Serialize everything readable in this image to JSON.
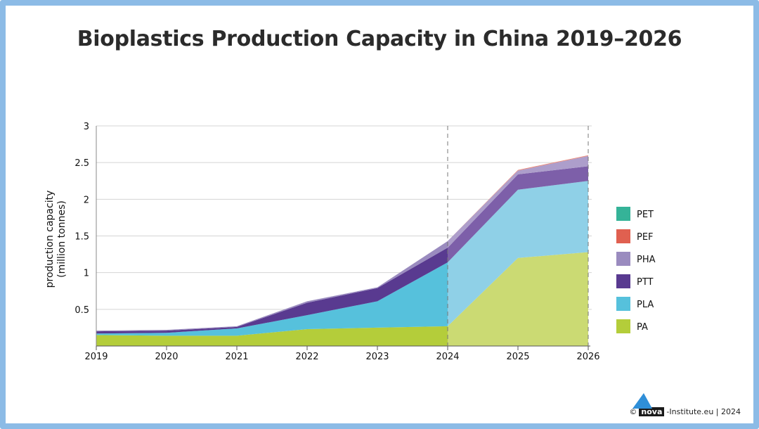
{
  "chart_data": {
    "type": "area",
    "stacked": true,
    "title": "Bioplastics Production Capacity in China 2019–2026",
    "xlabel": "",
    "ylabel": "production capacity (million tonnes)",
    "ylabel_lines": [
      "production capacity",
      "(million tonnes)"
    ],
    "x": [
      "2019",
      "2020",
      "2021",
      "2022",
      "2023",
      "2024",
      "2025",
      "2026"
    ],
    "ylim": [
      0,
      3
    ],
    "yticks": [
      "0.5",
      "1",
      "1.5",
      "2",
      "2.5",
      "3"
    ],
    "ytick_values": [
      0.5,
      1,
      1.5,
      2,
      2.5,
      3
    ],
    "grid": true,
    "forecast_from": "2024",
    "legend_position": "right",
    "series": [
      {
        "name": "PA",
        "color": "#b4cd3a",
        "forecast_color": "#cbda73",
        "values": [
          0.15,
          0.14,
          0.14,
          0.23,
          0.25,
          0.27,
          1.2,
          1.28
        ]
      },
      {
        "name": "PLA",
        "color": "#56c1dc",
        "forecast_color": "#8fd0e7",
        "values": [
          0.02,
          0.04,
          0.1,
          0.19,
          0.36,
          0.87,
          0.93,
          0.97
        ]
      },
      {
        "name": "PTT",
        "color": "#593a90",
        "forecast_color": "#7d5fa9",
        "values": [
          0.03,
          0.03,
          0.02,
          0.17,
          0.18,
          0.2,
          0.21,
          0.2
        ]
      },
      {
        "name": "PHA",
        "color": "#9a8bbf",
        "forecast_color": "#ad9ecb",
        "values": [
          0.01,
          0.01,
          0.01,
          0.02,
          0.01,
          0.09,
          0.05,
          0.14
        ]
      },
      {
        "name": "PEF",
        "color": "#e06050",
        "forecast_color": "#e8897c",
        "values": [
          0,
          0,
          0,
          0,
          0,
          0,
          0.01,
          0.01
        ]
      },
      {
        "name": "PET",
        "color": "#35b398",
        "forecast_color": "#35b398",
        "values": [
          0,
          0,
          0,
          0,
          0,
          0,
          0,
          0
        ]
      }
    ],
    "legend_order": [
      "PET",
      "PEF",
      "PHA",
      "PTT",
      "PLA",
      "PA"
    ]
  },
  "credit": {
    "copyright": "©",
    "brand": "nova",
    "suffix": "-Institute.eu | 2024"
  }
}
